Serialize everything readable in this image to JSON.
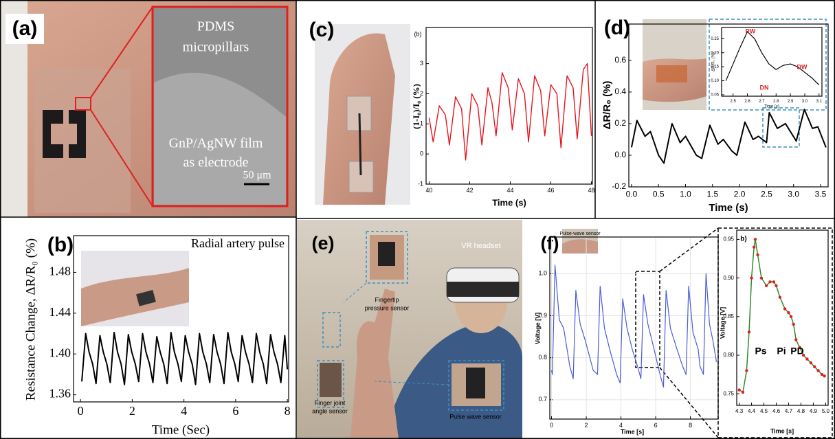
{
  "panels": [
    {
      "label": "(a)",
      "texts": [
        "PDMS",
        "micropillars",
        "GnP/AgNW film",
        "as electrode",
        "50 μm"
      ]
    },
    {
      "label": "(b)"
    },
    {
      "label": "(c)"
    },
    {
      "label": "(d)"
    },
    {
      "label": "(e)",
      "texts": [
        "VR headset",
        "Fingertip",
        "pressure sensor",
        "Finger joint",
        "angle sensor",
        "Pulse wave sensor"
      ]
    },
    {
      "label": "(f)",
      "texts": [
        "Pulse-wave sensor"
      ]
    }
  ],
  "chart_data": [
    {
      "type": "line",
      "title": "Radial artery pulse",
      "xlabel": "Time (Sec)",
      "ylabel": "Resistance Change, ΔR/R₀ (%)",
      "xlim": [
        -0.27,
        8.05
      ],
      "ylim": [
        1.353,
        1.516
      ],
      "xticks": [
        0,
        2,
        4,
        6,
        8
      ],
      "yticks": [
        1.36,
        {
          "value": 1.4,
          "label": "1.40"
        },
        1.44,
        1.48
      ],
      "x": [
        0.05,
        0.2,
        0.33,
        0.47,
        0.6,
        0.75,
        0.88,
        1.02,
        1.15,
        1.3,
        1.43,
        1.57,
        1.7,
        1.85,
        1.98,
        2.12,
        2.25,
        2.4,
        2.53,
        2.67,
        2.8,
        2.95,
        3.08,
        3.22,
        3.35,
        3.5,
        3.63,
        3.77,
        3.9,
        4.05,
        4.18,
        4.32,
        4.45,
        4.6,
        4.73,
        4.87,
        5.0,
        5.15,
        5.28,
        5.42,
        5.55,
        5.7,
        5.83,
        5.97,
        6.1,
        6.25,
        6.38,
        6.52,
        6.65,
        6.8,
        6.93,
        7.07,
        7.2,
        7.35,
        7.48,
        7.62,
        7.75,
        7.9,
        8.0
      ],
      "series": [
        {
          "color": "#000000",
          "values": [
            1.373,
            1.42,
            1.402,
            1.39,
            1.371,
            1.418,
            1.402,
            1.39,
            1.372,
            1.421,
            1.402,
            1.39,
            1.37,
            1.419,
            1.402,
            1.39,
            1.373,
            1.42,
            1.402,
            1.39,
            1.372,
            1.417,
            1.402,
            1.39,
            1.371,
            1.421,
            1.402,
            1.39,
            1.373,
            1.418,
            1.402,
            1.39,
            1.37,
            1.42,
            1.402,
            1.39,
            1.372,
            1.419,
            1.402,
            1.39,
            1.371,
            1.421,
            1.402,
            1.39,
            1.373,
            1.418,
            1.402,
            1.39,
            1.372,
            1.42,
            1.402,
            1.39,
            1.371,
            1.419,
            1.402,
            1.39,
            1.372,
            1.418,
            1.385
          ]
        }
      ]
    },
    {
      "type": "line",
      "xlabel": "Time (s)",
      "ylabel": "(1-I₀)/I₀ (%)",
      "annotations": [
        "(b)"
      ],
      "xlim": [
        39.85,
        48.05
      ],
      "ylim": [
        -1,
        4.2
      ],
      "xticks": [
        40,
        42,
        44,
        46,
        48
      ],
      "yticks": [
        -1,
        0,
        1,
        2,
        3
      ],
      "x": [
        40.0,
        40.2,
        40.5,
        40.8,
        41.0,
        41.3,
        41.6,
        41.8,
        42.1,
        42.4,
        42.6,
        42.9,
        43.1,
        43.3,
        43.6,
        43.9,
        44.1,
        44.4,
        44.7,
        44.9,
        45.2,
        45.5,
        45.7,
        46.0,
        46.3,
        46.5,
        46.8,
        47.1,
        47.3,
        47.6,
        47.8,
        48.0
      ],
      "series": [
        {
          "color": "#e8141c",
          "values": [
            1.2,
            0.4,
            1.6,
            1.3,
            0.3,
            1.9,
            1.5,
            -0.2,
            2.0,
            1.6,
            0.3,
            2.2,
            1.7,
            0.6,
            2.7,
            2.2,
            0.8,
            2.5,
            2.0,
            0.4,
            2.6,
            2.1,
            0.6,
            2.3,
            2.0,
            0.2,
            2.6,
            2.2,
            0.5,
            2.8,
            3.0,
            0.6
          ]
        }
      ]
    },
    {
      "type": "line",
      "xlabel": "Time (s)",
      "ylabel": "ΔR/R₀ (%)",
      "xlim": [
        -0.05,
        3.64
      ],
      "ylim": [
        -0.2,
        0.83
      ],
      "xticks": [
        {
          "value": 0,
          "label": "0.0"
        },
        0.5,
        {
          "value": 1,
          "label": "1.0"
        },
        1.5,
        {
          "value": 2,
          "label": "2.0"
        },
        2.5,
        {
          "value": 3,
          "label": "3.0"
        },
        3.5
      ],
      "yticks": [
        -0.2,
        {
          "value": 0,
          "label": "0.0"
        },
        0.2,
        0.4,
        0.6
      ],
      "x": [
        0.0,
        0.1,
        0.25,
        0.35,
        0.5,
        0.6,
        0.75,
        0.9,
        1.0,
        1.2,
        1.3,
        1.45,
        1.6,
        1.7,
        1.85,
        1.95,
        2.1,
        2.25,
        2.35,
        2.5,
        2.55,
        2.7,
        2.85,
        3.05,
        3.2,
        3.35,
        3.45,
        3.6
      ],
      "series": [
        {
          "color": "#000000",
          "values": [
            0.05,
            0.22,
            0.12,
            0.15,
            0.0,
            -0.05,
            0.2,
            0.08,
            0.12,
            0.0,
            -0.02,
            0.19,
            0.07,
            0.1,
            0.03,
            0.0,
            0.21,
            0.1,
            0.12,
            0.08,
            0.27,
            0.17,
            0.2,
            0.09,
            0.29,
            0.17,
            0.18,
            0.05
          ]
        }
      ]
    },
    {
      "type": "line",
      "xlabel": "Time (s)",
      "ylabel": "ΔR/R₀ (%)",
      "annotations": [
        "PW",
        "DN",
        "DW"
      ],
      "xlim": [
        2.42,
        3.12
      ],
      "ylim": [
        0.045,
        0.29
      ],
      "xticks": [
        2.5,
        2.6,
        2.7,
        2.8,
        2.9,
        {
          "value": 3,
          "label": "3.0"
        },
        3.1
      ],
      "yticks": [
        0.05,
        {
          "value": 0.1,
          "label": "0.10"
        },
        0.15,
        {
          "value": 0.2,
          "label": "0.20"
        },
        0.25
      ],
      "x": [
        2.45,
        2.55,
        2.6,
        2.65,
        2.7,
        2.75,
        2.8,
        2.85,
        2.9,
        2.95,
        3.0,
        3.05,
        3.1
      ],
      "series": [
        {
          "color": "#000000",
          "values": [
            0.1,
            0.22,
            0.275,
            0.25,
            0.2,
            0.16,
            0.14,
            0.155,
            0.16,
            0.15,
            0.13,
            0.11,
            0.085
          ]
        }
      ]
    },
    {
      "type": "line",
      "xlabel": "Time [s]",
      "ylabel": "Voltage [V]",
      "grid": true,
      "xlim": [
        -0.1,
        9.6
      ],
      "ylim": [
        0.654,
        1.087
      ],
      "xticks": [
        0,
        2,
        4,
        6,
        8
      ],
      "yticks": [
        0.7,
        0.8,
        0.9,
        {
          "value": 1,
          "label": "1.0"
        }
      ],
      "x": [
        0.0,
        0.05,
        0.2,
        0.45,
        0.7,
        1.05,
        1.25,
        1.4,
        1.65,
        1.95,
        2.4,
        2.65,
        2.8,
        3.05,
        3.35,
        3.75,
        3.95,
        4.1,
        4.35,
        4.65,
        4.95,
        5.15,
        5.3,
        5.55,
        5.85,
        6.25,
        6.45,
        6.6,
        6.85,
        7.15,
        7.55,
        7.75,
        7.9,
        8.15,
        8.45,
        8.55,
        8.75,
        8.9,
        9.1,
        9.3,
        9.5
      ],
      "series": [
        {
          "color": "#4a5bd8",
          "values": [
            0.77,
            0.76,
            1.02,
            0.89,
            0.87,
            0.78,
            0.75,
            0.96,
            0.88,
            0.84,
            0.77,
            0.76,
            0.97,
            0.87,
            0.82,
            0.76,
            0.74,
            0.94,
            0.87,
            0.82,
            0.78,
            0.75,
            0.95,
            0.88,
            0.83,
            0.76,
            0.73,
            0.96,
            0.87,
            0.83,
            0.78,
            0.76,
            0.97,
            0.86,
            0.82,
            0.78,
            0.76,
            1.0,
            0.88,
            0.84,
            0.79
          ]
        }
      ]
    },
    {
      "type": "line",
      "xlabel": "Time [s]",
      "ylabel": "Voltage [V]",
      "annotations": [
        "b)",
        "Ps",
        "Pi",
        "PD"
      ],
      "xlim": [
        4.28,
        5.02
      ],
      "ylim": [
        0.735,
        0.962
      ],
      "xticks": [
        4.3,
        4.4,
        4.5,
        4.6,
        4.7,
        4.8,
        4.9,
        {
          "value": 5,
          "label": "5.0"
        }
      ],
      "yticks": [
        0.75,
        {
          "value": 0.8,
          "label": "0.80"
        },
        0.85,
        {
          "value": 0.9,
          "label": "0.90"
        },
        0.95
      ],
      "x": [
        4.3,
        4.33,
        4.36,
        4.38,
        4.4,
        4.42,
        4.43,
        4.45,
        4.48,
        4.52,
        4.55,
        4.58,
        4.6,
        4.63,
        4.67,
        4.7,
        4.72,
        4.74,
        4.76,
        4.79,
        4.82,
        4.85,
        4.88,
        4.91,
        4.94,
        4.97,
        4.99
      ],
      "series": [
        {
          "color": "#2e8b2e",
          "marker_color": "#e02020",
          "values": [
            0.755,
            0.752,
            0.78,
            0.83,
            0.9,
            0.94,
            0.95,
            0.93,
            0.9,
            0.89,
            0.895,
            0.895,
            0.89,
            0.875,
            0.86,
            0.855,
            0.85,
            0.84,
            0.82,
            0.81,
            0.8,
            0.795,
            0.79,
            0.785,
            0.78,
            0.775,
            0.773
          ]
        }
      ]
    }
  ]
}
